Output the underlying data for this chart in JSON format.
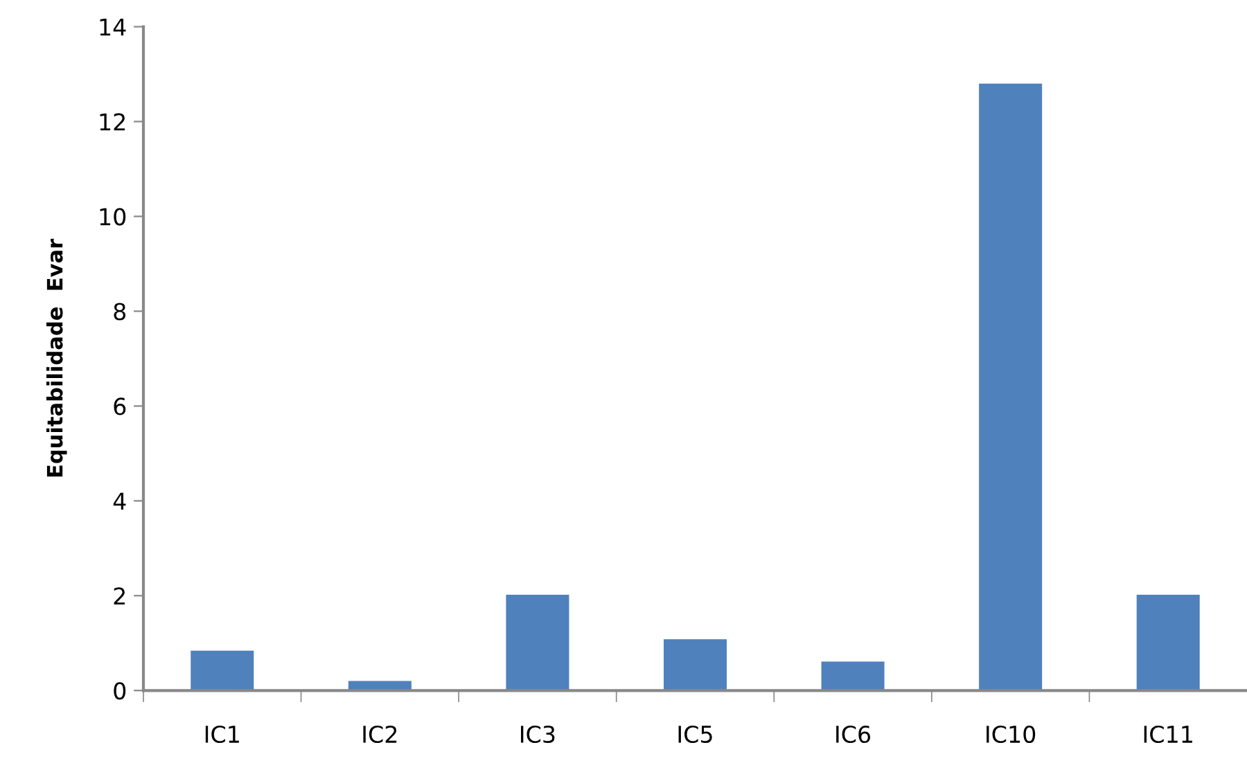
{
  "chart_data": {
    "type": "bar",
    "ylabel": "Equitabilidade  Evar",
    "categories": [
      "IC1",
      "IC2",
      "IC3",
      "IC5",
      "IC6",
      "IC10",
      "IC11"
    ],
    "values": [
      0.84,
      0.2,
      2.02,
      1.08,
      0.61,
      12.8,
      2.02
    ],
    "color": "#4f81bd",
    "ylim": [
      0,
      14
    ],
    "yticks": [
      0,
      2,
      4,
      6,
      8,
      10,
      12,
      14
    ],
    "grid": false
  }
}
